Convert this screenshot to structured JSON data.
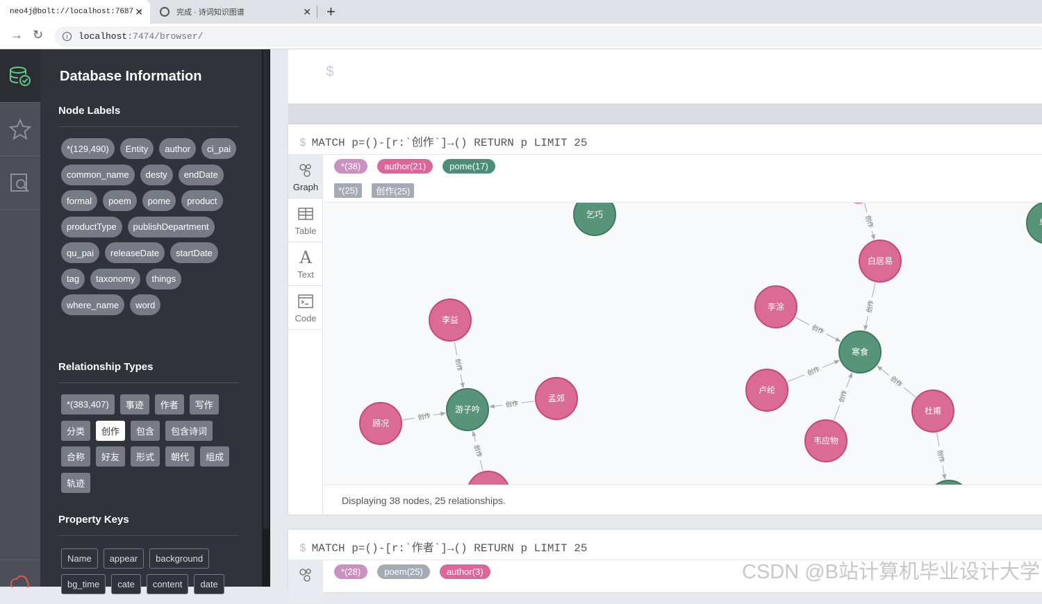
{
  "browser": {
    "tabs": [
      {
        "label": "neo4j@bolt://localhost:7687 -"
      },
      {
        "label": "完成 · 诗词知识图谱"
      }
    ],
    "url_host": "localhost",
    "url_path": ":7474/browser/"
  },
  "drawer": {
    "title": "Database Information",
    "node_labels_heading": "Node Labels",
    "node_labels": [
      "*(129,490)",
      "Entity",
      "author",
      "ci_pai",
      "common_name",
      "desty",
      "endDate",
      "formal",
      "poem",
      "pome",
      "product",
      "productType",
      "publishDepartment",
      "qu_pai",
      "releaseDate",
      "startDate",
      "tag",
      "taxonomy",
      "things",
      "where_name",
      "word"
    ],
    "relationship_heading": "Relationship Types",
    "relationship_types": [
      "*(383,407)",
      "事迹",
      "作者",
      "写作",
      "分类",
      "创作",
      "包含",
      "包含诗词",
      "合称",
      "好友",
      "形式",
      "朝代",
      "组成",
      "轨迹"
    ],
    "active_relationship": "创作",
    "property_heading": "Property Keys",
    "property_keys": [
      "Name",
      "appear",
      "background",
      "bg_time",
      "cate",
      "content",
      "date"
    ]
  },
  "editor": {
    "prompt": "$"
  },
  "frames": [
    {
      "query": "MATCH p=()-[r:`创作`]→() RETURN p LIMIT 25",
      "side_tabs": [
        {
          "label": "Graph",
          "icon": "graph-icon"
        },
        {
          "label": "Table",
          "icon": "table-icon"
        },
        {
          "label": "Text",
          "icon": "text-icon"
        },
        {
          "label": "Code",
          "icon": "code-icon"
        }
      ],
      "node_chips": [
        {
          "label": "*(38)",
          "color": "#c990c0"
        },
        {
          "label": "author(21)",
          "color": "#d9679a"
        },
        {
          "label": "pome(17)",
          "color": "#4a8f75"
        }
      ],
      "rel_chips": [
        {
          "label": "*(25)",
          "color": "#a5abb6"
        },
        {
          "label": "创作(25)",
          "color": "#a5abb6"
        }
      ],
      "status": "Displaying 38 nodes, 25 relationships.",
      "graph": {
        "author_color": "#da6b95",
        "author_stroke": "#c74874",
        "pome_color": "#57947a",
        "pome_stroke": "#3d7a60",
        "edge_label": "创作",
        "nodes": [
          {
            "id": "qiqiao",
            "label": "乞巧",
            "type": "pome"
          },
          {
            "id": "zaochun",
            "label": "早春",
            "type": "pome"
          },
          {
            "id": "baijuyi",
            "label": "白居易",
            "type": "author"
          },
          {
            "id": "liyi",
            "label": "李益",
            "type": "author"
          },
          {
            "id": "lishen",
            "label": "李涂",
            "type": "author"
          },
          {
            "id": "hanshi",
            "label": "寒食",
            "type": "pome"
          },
          {
            "id": "menjiao",
            "label": "孟郊",
            "type": "author"
          },
          {
            "id": "youziyin",
            "label": "游子吟",
            "type": "pome"
          },
          {
            "id": "gukuang",
            "label": "顾况",
            "type": "author"
          },
          {
            "id": "lulun",
            "label": "卢纶",
            "type": "author"
          },
          {
            "id": "dufu",
            "label": "杜甫",
            "type": "author"
          },
          {
            "id": "weiyingwu",
            "label": "韦应物",
            "type": "author"
          },
          {
            "id": "bottom1",
            "label": "",
            "type": "author"
          },
          {
            "id": "bottom2",
            "label": "",
            "type": "pome"
          },
          {
            "id": "top1",
            "label": "",
            "type": "author"
          }
        ],
        "edges": [
          {
            "from": "top1",
            "to": "baijuyi"
          },
          {
            "from": "baijuyi",
            "to": "hanshi"
          },
          {
            "from": "lishen",
            "to": "hanshi"
          },
          {
            "from": "lulun",
            "to": "hanshi"
          },
          {
            "from": "weiyingwu",
            "to": "hanshi"
          },
          {
            "from": "dufu",
            "to": "hanshi"
          },
          {
            "from": "dufu",
            "to": "bottom2"
          },
          {
            "from": "liyi",
            "to": "youziyin"
          },
          {
            "from": "menjiao",
            "to": "youziyin"
          },
          {
            "from": "gukuang",
            "to": "youziyin"
          },
          {
            "from": "bottom1",
            "to": "youziyin"
          }
        ]
      }
    },
    {
      "query": "MATCH p=()-[r:`作者`]→() RETURN p LIMIT 25",
      "node_chips": [
        {
          "label": "*(28)",
          "color": "#c990c0"
        },
        {
          "label": "poem(25)",
          "color": "#a5abb6"
        },
        {
          "label": "author(3)",
          "color": "#d9679a"
        }
      ]
    }
  ],
  "watermark": "CSDN @B站计算机毕业设计大学"
}
